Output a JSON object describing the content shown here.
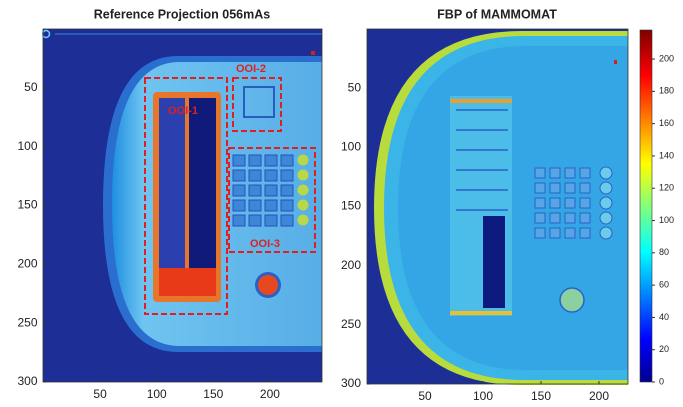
{
  "chart_data": [
    {
      "type": "image",
      "title": "Reference Projection 056mAs",
      "xlim": [
        0,
        246
      ],
      "ylim": [
        0,
        300
      ],
      "xticks": [
        50,
        100,
        150,
        200
      ],
      "yticks": [
        50,
        100,
        150,
        200,
        250,
        300
      ],
      "annotations": [
        {
          "text": "OOI-1"
        },
        {
          "text": "OOI-2"
        },
        {
          "text": "OOI-3"
        }
      ]
    },
    {
      "type": "image",
      "title": "FBP of MAMMOMAT",
      "xlim": [
        0,
        225
      ],
      "ylim": [
        0,
        300
      ],
      "xticks": [
        50,
        100,
        150,
        200
      ],
      "yticks": [
        50,
        100,
        150,
        200,
        250,
        300
      ],
      "clim": [
        0,
        218
      ],
      "cticks": [
        0,
        20,
        40,
        60,
        80,
        100,
        120,
        140,
        160,
        180,
        200
      ]
    }
  ]
}
